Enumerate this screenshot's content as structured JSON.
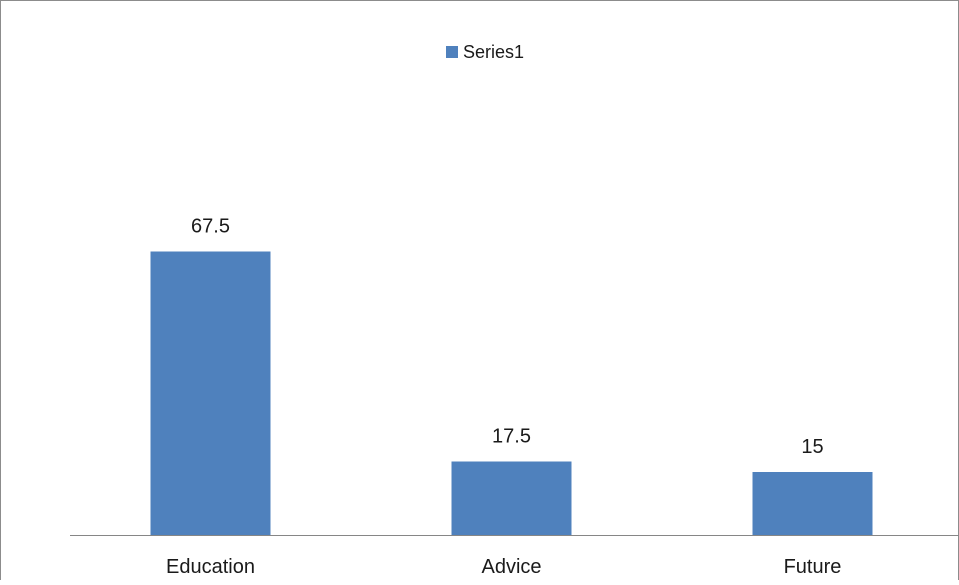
{
  "chart_data": {
    "type": "bar",
    "categories": [
      "Education",
      "Advice",
      "Future"
    ],
    "series": [
      {
        "name": "Series1",
        "values": [
          67.5,
          17.5,
          15
        ],
        "data_labels": [
          "67.5",
          "17.5",
          "15"
        ],
        "color": "#4F81BD"
      }
    ],
    "legend_position": "top-center",
    "grid": false,
    "y_axis_visible": false,
    "ylim": [
      0,
      100
    ]
  }
}
